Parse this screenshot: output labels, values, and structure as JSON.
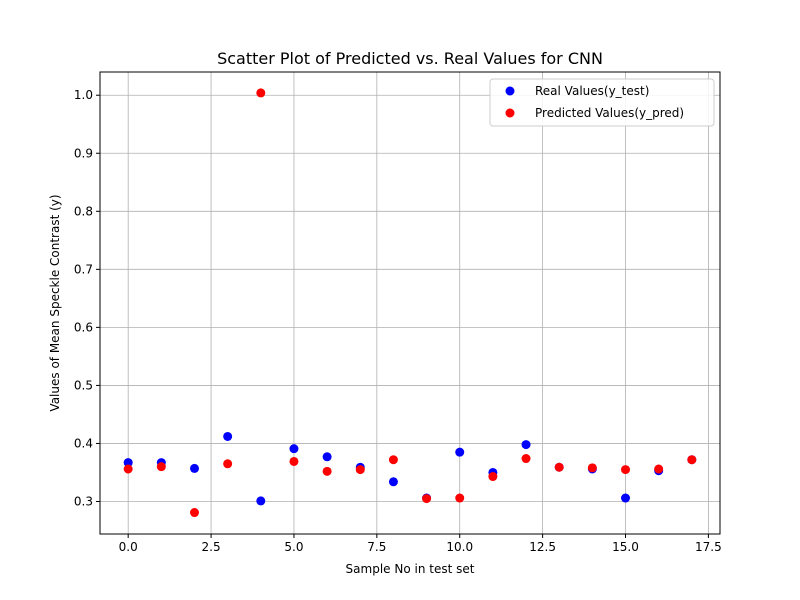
{
  "chart_data": {
    "type": "scatter",
    "title": "Scatter Plot of Predicted vs. Real Values for CNN",
    "xlabel": "Sample No in test set",
    "ylabel": "Values of Mean Speckle Contrast (y)",
    "xlim": [
      -0.85,
      17.85
    ],
    "ylim": [
      0.244,
      1.04
    ],
    "xticks": [
      0.0,
      2.5,
      5.0,
      7.5,
      10.0,
      12.5,
      15.0,
      17.5
    ],
    "xtick_labels": [
      "0.0",
      "2.5",
      "5.0",
      "7.5",
      "10.0",
      "12.5",
      "15.0",
      "17.5"
    ],
    "yticks": [
      0.3,
      0.4,
      0.5,
      0.6,
      0.7,
      0.8,
      0.9,
      1.0
    ],
    "ytick_labels": [
      "0.3",
      "0.4",
      "0.5",
      "0.6",
      "0.7",
      "0.8",
      "0.9",
      "1.0"
    ],
    "grid": true,
    "legend_position": "top-right",
    "x": [
      0,
      1,
      2,
      3,
      4,
      5,
      6,
      7,
      8,
      9,
      10,
      11,
      12,
      13,
      14,
      15,
      16,
      17
    ],
    "series": [
      {
        "name": "Real Values(y_test)",
        "color": "#0000ff",
        "values": [
          0.367,
          0.367,
          0.357,
          0.412,
          0.301,
          0.391,
          0.377,
          0.359,
          0.334,
          0.306,
          0.385,
          0.35,
          0.398,
          0.359,
          0.356,
          0.306,
          0.353,
          0.372
        ]
      },
      {
        "name": "Predicted Values(y_pred)",
        "color": "#ff0000",
        "values": [
          0.356,
          0.36,
          0.281,
          0.365,
          1.004,
          0.369,
          0.352,
          0.355,
          0.372,
          0.305,
          0.306,
          0.343,
          0.374,
          0.359,
          0.358,
          0.355,
          0.356,
          0.372
        ]
      }
    ]
  }
}
